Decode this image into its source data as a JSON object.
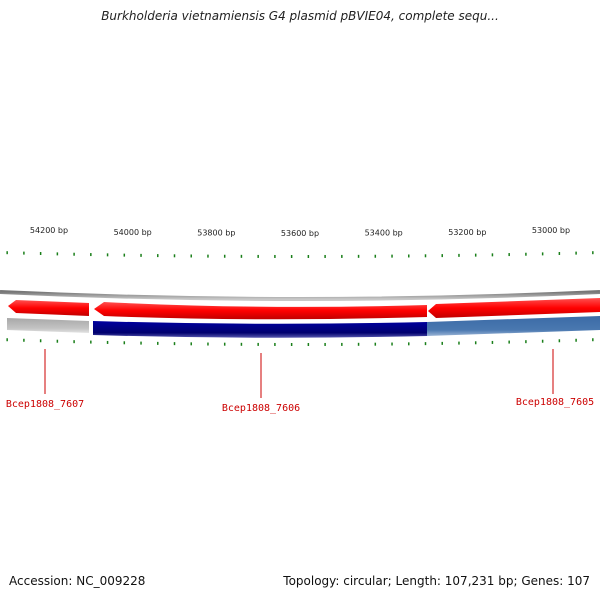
{
  "title": "Burkholderia vietnamiensis G4 plasmid pBVIE04, complete sequ...",
  "footer": {
    "accession": "Accession: NC_009228",
    "summary": "Topology: circular; Length: 107,231 bp; Genes: 107"
  },
  "colors": {
    "forward_strand": "#ff0000",
    "reverse_gene_dark": "#00007f",
    "reverse_gene_light": "#4a74a8",
    "gene_faded": "#b8b8b8",
    "ticks": "#1a7f1a",
    "backbone": "#888888",
    "label": "#cc0000"
  },
  "scale": {
    "unit": "bp",
    "labeled_positions": [
      54200,
      54000,
      53800,
      53600,
      53400,
      53200,
      53000
    ],
    "labels": [
      "54200 bp",
      "54000 bp",
      "53800 bp",
      "53600 bp",
      "53400 bp",
      "53200 bp",
      "53000 bp"
    ]
  },
  "genes": [
    {
      "name": "Bcep1808_7607"
    },
    {
      "name": "Bcep1808_7606"
    },
    {
      "name": "Bcep1808_7605"
    }
  ]
}
